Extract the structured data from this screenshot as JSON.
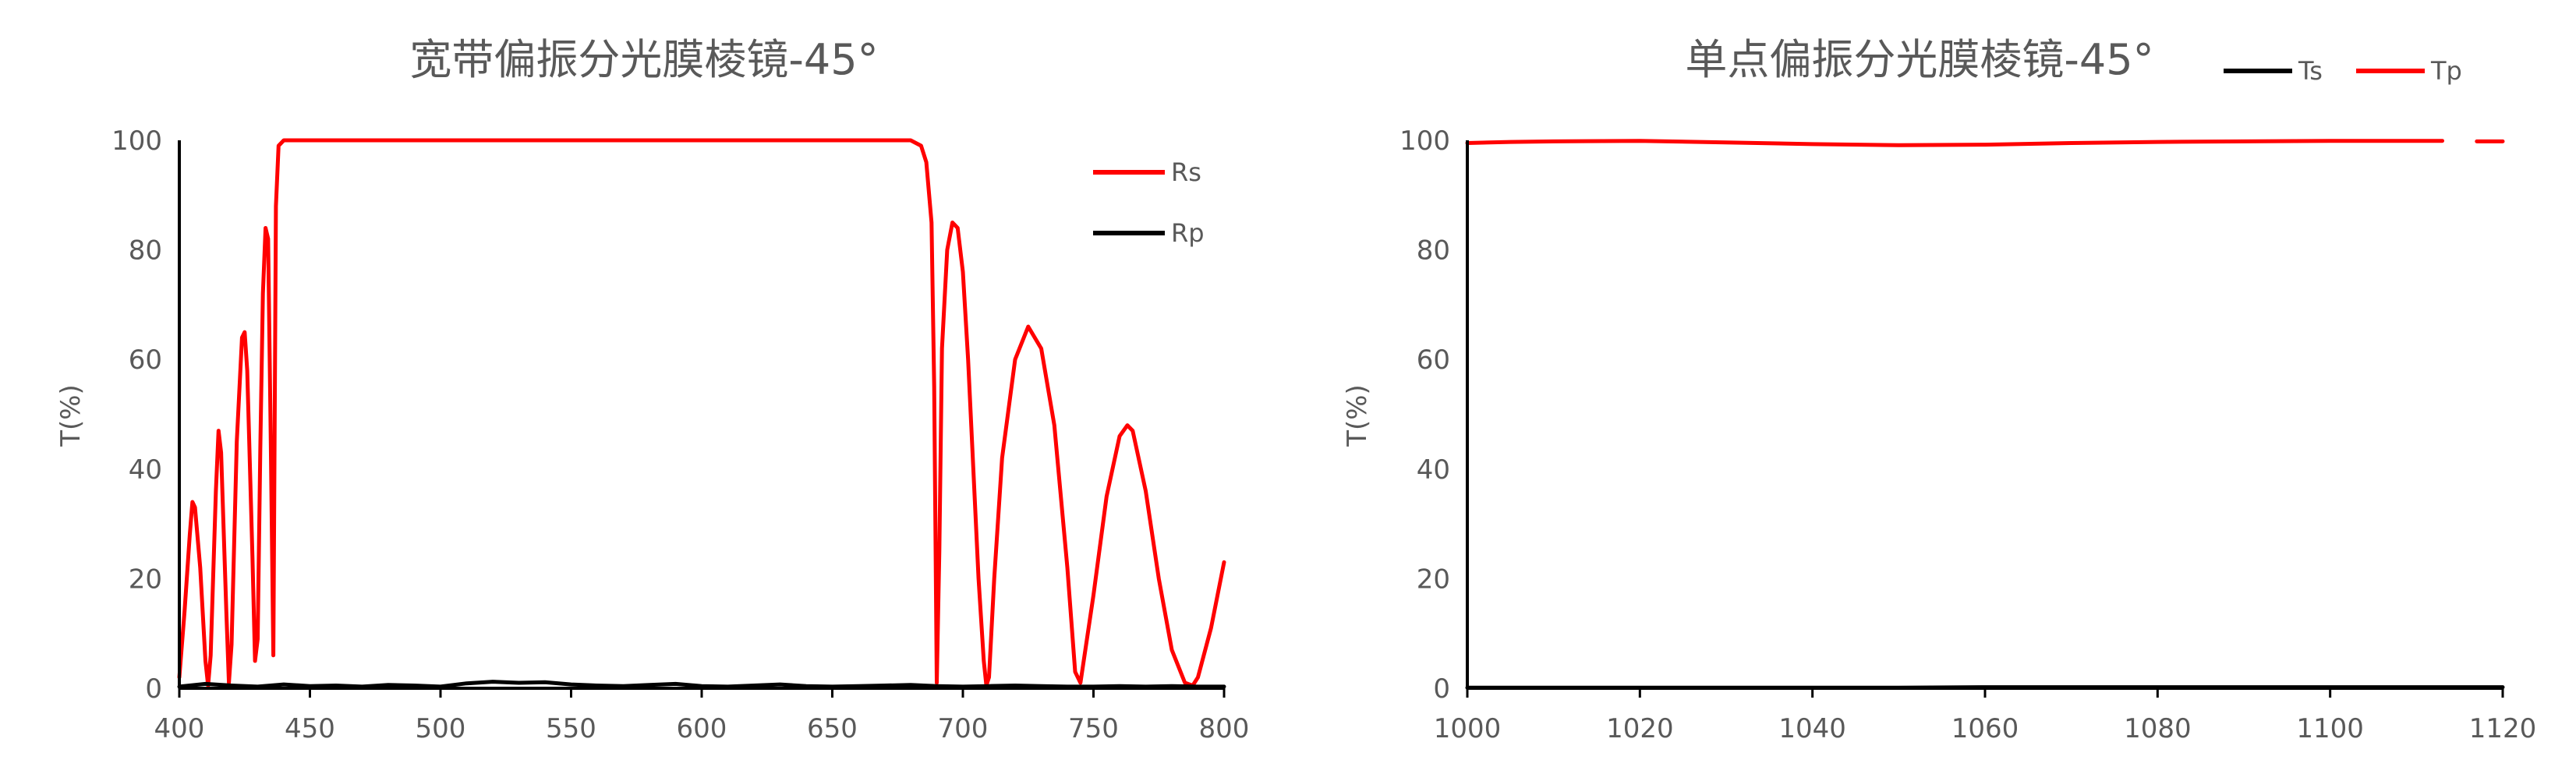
{
  "chart_data": [
    {
      "type": "line",
      "title": "宽带偏振分光膜棱镜-45°",
      "xlabel": "",
      "ylabel": "T(%)",
      "xlim": [
        400,
        800
      ],
      "ylim": [
        0,
        100
      ],
      "xticks": [
        400,
        450,
        500,
        550,
        600,
        650,
        700,
        750,
        800
      ],
      "yticks": [
        0,
        20,
        40,
        60,
        80,
        100
      ],
      "grid": false,
      "legend_position": "top-right",
      "series": [
        {
          "name": "Rs",
          "color": "#ff0000",
          "x": [
            400,
            402,
            404,
            405,
            406,
            408,
            410,
            411,
            412,
            414,
            415,
            416,
            418,
            419,
            420,
            422,
            424,
            425,
            426,
            428,
            429,
            430,
            431,
            432,
            433,
            434,
            435,
            436,
            437,
            438,
            440,
            445,
            450,
            500,
            550,
            600,
            650,
            680,
            684,
            686,
            688,
            689,
            690,
            691,
            692,
            694,
            696,
            698,
            700,
            702,
            704,
            706,
            708,
            709,
            710,
            712,
            715,
            720,
            725,
            730,
            735,
            740,
            743,
            745,
            750,
            755,
            760,
            763,
            765,
            770,
            775,
            780,
            785,
            788,
            790,
            795,
            800
          ],
          "y": [
            2,
            14,
            28,
            34,
            33,
            22,
            5,
            0.5,
            6,
            36,
            47,
            43,
            14,
            1,
            8,
            45,
            64,
            65,
            58,
            24,
            5,
            9,
            44,
            72,
            84,
            82,
            45,
            6,
            88,
            99,
            100,
            100,
            100,
            100,
            100,
            100,
            100,
            100,
            99,
            96,
            85,
            55,
            1,
            25,
            62,
            80,
            85,
            84,
            76,
            60,
            40,
            20,
            5,
            0.5,
            2,
            20,
            42,
            60,
            66,
            62,
            48,
            22,
            3,
            1,
            17,
            35,
            46,
            48,
            47,
            36,
            20,
            7,
            1,
            0.5,
            2,
            11,
            23
          ]
        },
        {
          "name": "Rp",
          "color": "#000000",
          "x": [
            400,
            410,
            420,
            430,
            440,
            450,
            460,
            470,
            480,
            490,
            500,
            510,
            520,
            530,
            540,
            550,
            560,
            570,
            580,
            590,
            600,
            610,
            620,
            630,
            640,
            650,
            660,
            670,
            680,
            690,
            700,
            710,
            720,
            730,
            740,
            750,
            760,
            770,
            780,
            790,
            800
          ],
          "y": [
            0.3,
            0.8,
            0.5,
            0.3,
            0.7,
            0.4,
            0.5,
            0.3,
            0.6,
            0.5,
            0.3,
            0.9,
            1.2,
            1.0,
            1.1,
            0.7,
            0.5,
            0.4,
            0.6,
            0.8,
            0.4,
            0.3,
            0.5,
            0.7,
            0.4,
            0.3,
            0.4,
            0.5,
            0.6,
            0.4,
            0.3,
            0.4,
            0.5,
            0.4,
            0.3,
            0.3,
            0.4,
            0.3,
            0.4,
            0.3,
            0.3
          ]
        }
      ]
    },
    {
      "type": "line",
      "title": "单点偏振分光膜棱镜-45°",
      "xlabel": "",
      "ylabel": "T(%)",
      "xlim": [
        1000,
        1120
      ],
      "ylim": [
        0,
        100
      ],
      "xticks": [
        1000,
        1020,
        1040,
        1060,
        1080,
        1100,
        1120
      ],
      "yticks": [
        0,
        20,
        40,
        60,
        80,
        100
      ],
      "grid": false,
      "legend_position": "top",
      "series": [
        {
          "name": "Ts",
          "color": "#000000",
          "x": [
            1000,
            1010,
            1020,
            1030,
            1040,
            1050,
            1060,
            1070,
            1080,
            1090,
            1100,
            1110,
            1120
          ],
          "y": [
            0.1,
            0.1,
            0.1,
            0.1,
            0.1,
            0.1,
            0.2,
            0.2,
            0.2,
            0.2,
            0.2,
            0.2,
            0.2
          ]
        },
        {
          "name": "Tp",
          "color": "#ff0000",
          "x": [
            1000,
            1005,
            1010,
            1020,
            1030,
            1040,
            1050,
            1060,
            1070,
            1080,
            1090,
            1100,
            1110,
            1113,
            1114,
            1117,
            1120
          ],
          "y": [
            99.5,
            99.7,
            99.8,
            99.9,
            99.6,
            99.3,
            99.1,
            99.2,
            99.5,
            99.7,
            99.8,
            99.9,
            99.9,
            99.9,
            null,
            99.8,
            99.8
          ]
        }
      ]
    }
  ]
}
